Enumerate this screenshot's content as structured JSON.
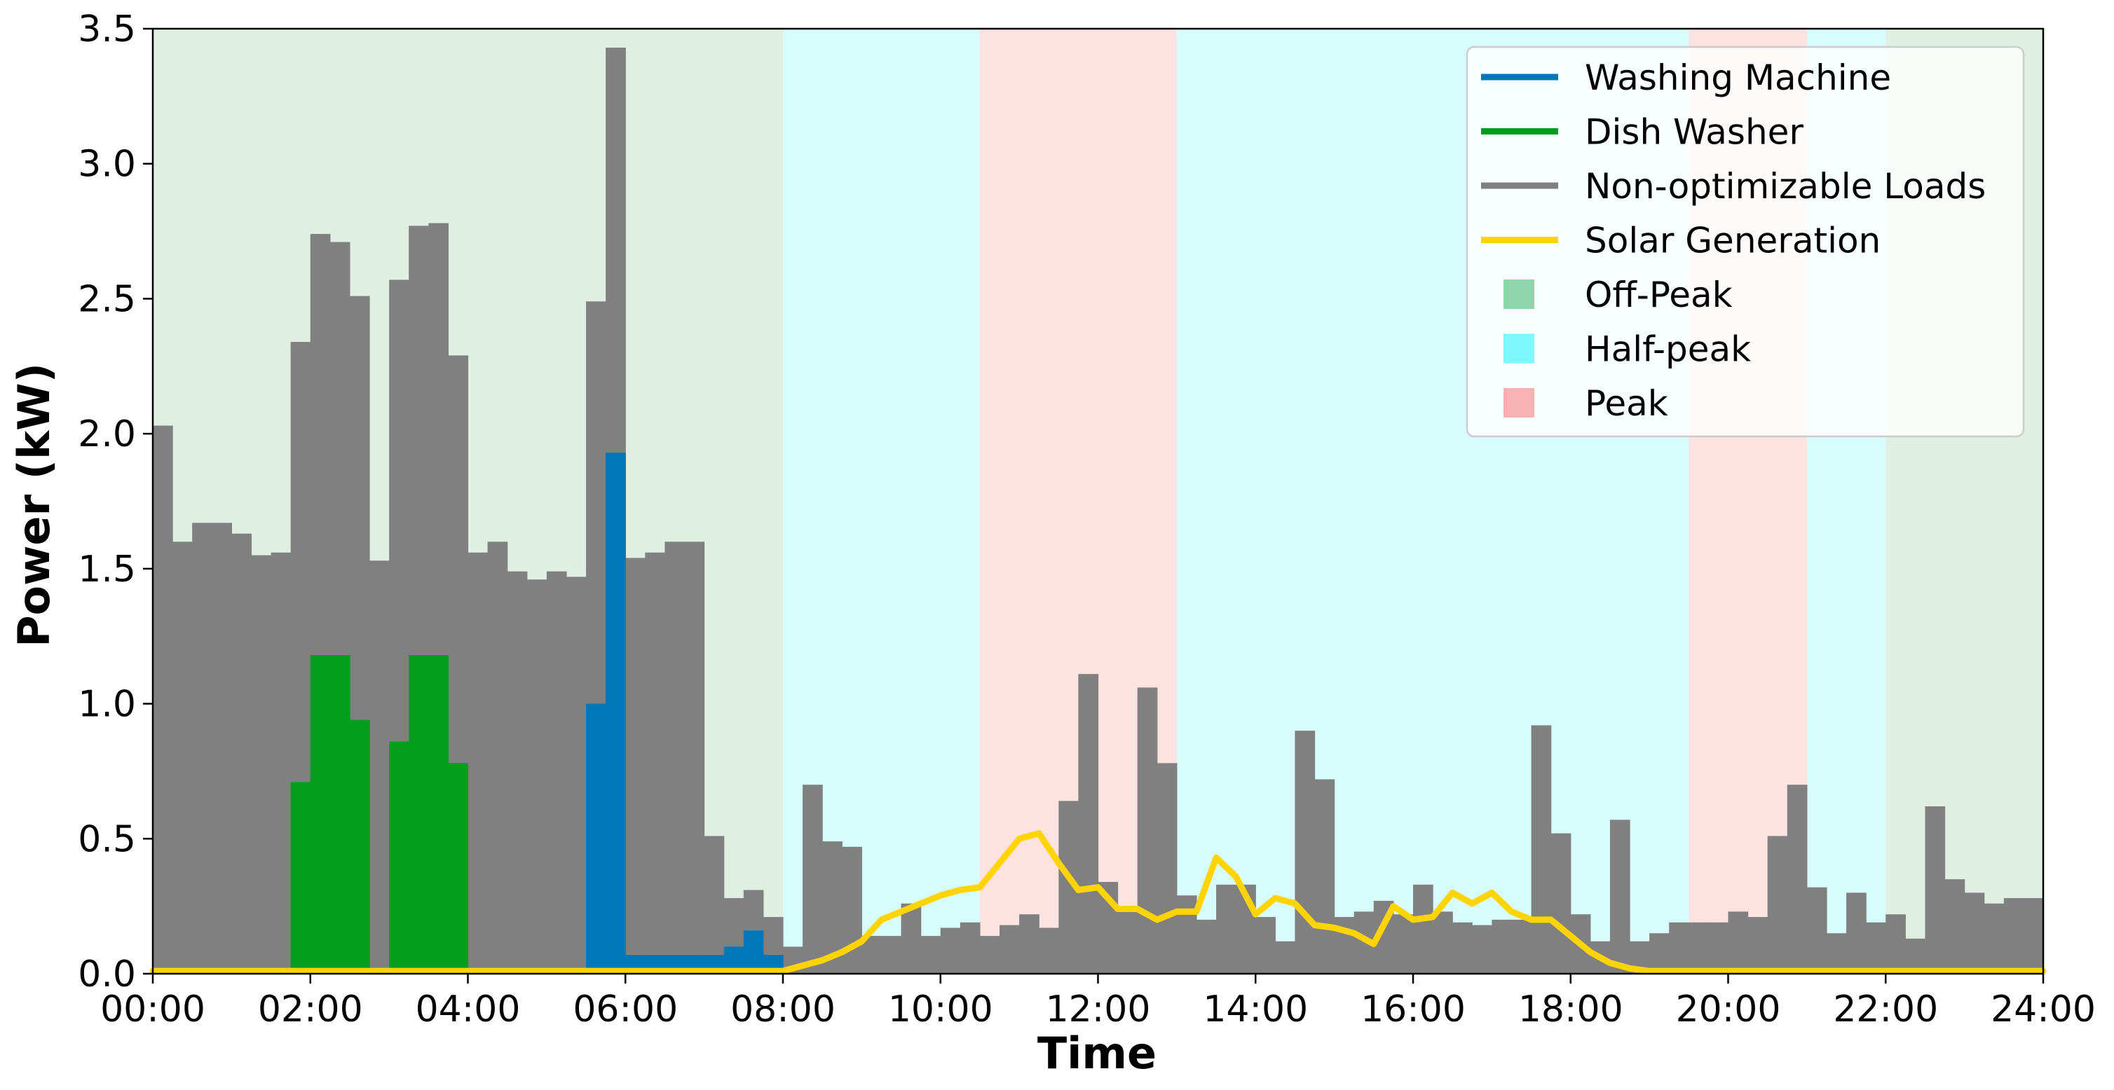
{
  "chart_data": {
    "type": "bar",
    "xlabel": "Time",
    "ylabel": "Power (kW)",
    "xlim": [
      0,
      24
    ],
    "ylim": [
      0,
      3.5
    ],
    "bin_hours": 0.25,
    "x_ticks": [
      "00:00",
      "02:00",
      "04:00",
      "06:00",
      "08:00",
      "10:00",
      "12:00",
      "14:00",
      "16:00",
      "18:00",
      "20:00",
      "22:00",
      "24:00"
    ],
    "y_ticks": [
      "0.0",
      "0.5",
      "1.0",
      "1.5",
      "2.0",
      "2.5",
      "3.0",
      "3.5"
    ],
    "tariff_periods": [
      {
        "name": "Off-Peak",
        "start": 0,
        "end": 8,
        "color": "#dff0e3",
        "legend_color": "#90d4aa"
      },
      {
        "name": "Half-peak",
        "start": 8,
        "end": 10.5,
        "color": "#d8fbfb",
        "legend_color": "#7ef8fb"
      },
      {
        "name": "Peak",
        "start": 10.5,
        "end": 13,
        "color": "#fde2e2",
        "legend_color": "#f7b3b3"
      },
      {
        "name": "Half-peak",
        "start": 13,
        "end": 19.5,
        "color": "#d8fbfb",
        "legend_color": "#7ef8fb"
      },
      {
        "name": "Peak",
        "start": 19.5,
        "end": 21,
        "color": "#fde2e2",
        "legend_color": "#f7b3b3"
      },
      {
        "name": "Half-peak",
        "start": 21,
        "end": 22,
        "color": "#d8fbfb",
        "legend_color": "#7ef8fb"
      },
      {
        "name": "Off-Peak",
        "start": 22,
        "end": 24,
        "color": "#dff0e3",
        "legend_color": "#90d4aa"
      }
    ],
    "series": [
      {
        "name": "Non-optimizable Loads",
        "color": "#808080",
        "kind": "bar",
        "values": [
          2.03,
          1.6,
          1.67,
          1.67,
          1.63,
          1.55,
          1.56,
          2.34,
          2.74,
          2.71,
          2.51,
          1.53,
          2.57,
          2.77,
          2.78,
          2.29,
          1.56,
          1.6,
          1.49,
          1.46,
          1.49,
          1.47,
          2.49,
          3.43,
          1.54,
          1.56,
          1.6,
          1.6,
          0.51,
          0.28,
          0.31,
          0.21,
          0.1,
          0.7,
          0.49,
          0.47,
          0.14,
          0.14,
          0.26,
          0.14,
          0.17,
          0.19,
          0.14,
          0.18,
          0.22,
          0.17,
          0.64,
          1.11,
          0.34,
          0.25,
          1.06,
          0.78,
          0.29,
          0.2,
          0.33,
          0.33,
          0.21,
          0.12,
          0.9,
          0.72,
          0.21,
          0.23,
          0.27,
          0.22,
          0.33,
          0.23,
          0.19,
          0.18,
          0.2,
          0.2,
          0.92,
          0.52,
          0.22,
          0.12,
          0.57,
          0.12,
          0.15,
          0.19,
          0.19,
          0.19,
          0.23,
          0.21,
          0.51,
          0.7,
          0.32,
          0.15,
          0.3,
          0.19,
          0.22,
          0.13,
          0.62,
          0.35,
          0.3,
          0.26,
          0.28,
          0.28
        ]
      },
      {
        "name": "Dish Washer",
        "color": "#009e1a",
        "kind": "bar",
        "values": [
          0,
          0,
          0,
          0,
          0,
          0,
          0,
          0.71,
          1.18,
          1.18,
          0.94,
          0,
          0.86,
          1.18,
          1.18,
          0.78,
          0,
          0,
          0,
          0,
          0,
          0,
          0,
          0,
          0,
          0,
          0,
          0,
          0,
          0,
          0,
          0,
          0,
          0,
          0,
          0,
          0,
          0,
          0,
          0,
          0,
          0,
          0,
          0,
          0,
          0,
          0,
          0,
          0,
          0,
          0,
          0,
          0,
          0,
          0,
          0,
          0,
          0,
          0,
          0,
          0,
          0,
          0,
          0,
          0,
          0,
          0,
          0,
          0,
          0,
          0,
          0,
          0,
          0,
          0,
          0,
          0,
          0,
          0,
          0,
          0,
          0,
          0,
          0,
          0,
          0,
          0,
          0,
          0,
          0,
          0,
          0,
          0,
          0,
          0,
          0
        ]
      },
      {
        "name": "Washing Machine",
        "color": "#0077b8",
        "kind": "bar",
        "values": [
          0,
          0,
          0,
          0,
          0,
          0,
          0,
          0,
          0,
          0,
          0,
          0,
          0,
          0,
          0,
          0,
          0,
          0,
          0,
          0,
          0,
          0,
          1.0,
          1.93,
          0.07,
          0.07,
          0.07,
          0.07,
          0.07,
          0.1,
          0.16,
          0.07,
          0,
          0,
          0,
          0,
          0,
          0,
          0,
          0,
          0,
          0,
          0,
          0,
          0,
          0,
          0,
          0,
          0,
          0,
          0,
          0,
          0,
          0,
          0,
          0,
          0,
          0,
          0,
          0,
          0,
          0,
          0,
          0,
          0,
          0,
          0,
          0,
          0,
          0,
          0,
          0,
          0,
          0,
          0,
          0,
          0,
          0,
          0,
          0,
          0,
          0,
          0,
          0,
          0,
          0,
          0,
          0,
          0,
          0,
          0,
          0,
          0,
          0,
          0,
          0
        ]
      },
      {
        "name": "Solar Generation",
        "color": "#ffd400",
        "kind": "line",
        "x": [
          0,
          7.75,
          8,
          8.25,
          8.5,
          8.75,
          9,
          9.25,
          9.5,
          9.75,
          10,
          10.25,
          10.5,
          10.75,
          11,
          11.25,
          11.5,
          11.75,
          12,
          12.25,
          12.5,
          12.75,
          13,
          13.25,
          13.5,
          13.75,
          14,
          14.25,
          14.5,
          14.75,
          15,
          15.25,
          15.5,
          15.75,
          16,
          16.25,
          16.5,
          16.75,
          17,
          17.25,
          17.5,
          17.75,
          18,
          18.25,
          18.5,
          18.75,
          19,
          19.5,
          24
        ],
        "y": [
          0.01,
          0.01,
          0.01,
          0.03,
          0.05,
          0.08,
          0.12,
          0.2,
          0.23,
          0.26,
          0.29,
          0.31,
          0.32,
          0.41,
          0.5,
          0.52,
          0.41,
          0.31,
          0.32,
          0.24,
          0.24,
          0.2,
          0.23,
          0.23,
          0.43,
          0.36,
          0.22,
          0.28,
          0.26,
          0.18,
          0.17,
          0.15,
          0.11,
          0.25,
          0.2,
          0.21,
          0.3,
          0.26,
          0.3,
          0.23,
          0.2,
          0.2,
          0.14,
          0.08,
          0.04,
          0.02,
          0.01,
          0.01,
          0.01
        ]
      }
    ],
    "legend": {
      "position": "top-right",
      "entries": [
        {
          "label": "Washing Machine",
          "color": "#0077b8",
          "kind": "line"
        },
        {
          "label": "Dish Washer",
          "color": "#009e1a",
          "kind": "line"
        },
        {
          "label": "Non-optimizable Loads",
          "color": "#808080",
          "kind": "line"
        },
        {
          "label": "Solar Generation",
          "color": "#ffd400",
          "kind": "line"
        },
        {
          "label": "Off-Peak",
          "color": "#90d4aa",
          "kind": "patch"
        },
        {
          "label": "Half-peak",
          "color": "#7ef8fb",
          "kind": "patch"
        },
        {
          "label": "Peak",
          "color": "#f7b3b3",
          "kind": "patch"
        }
      ]
    }
  }
}
